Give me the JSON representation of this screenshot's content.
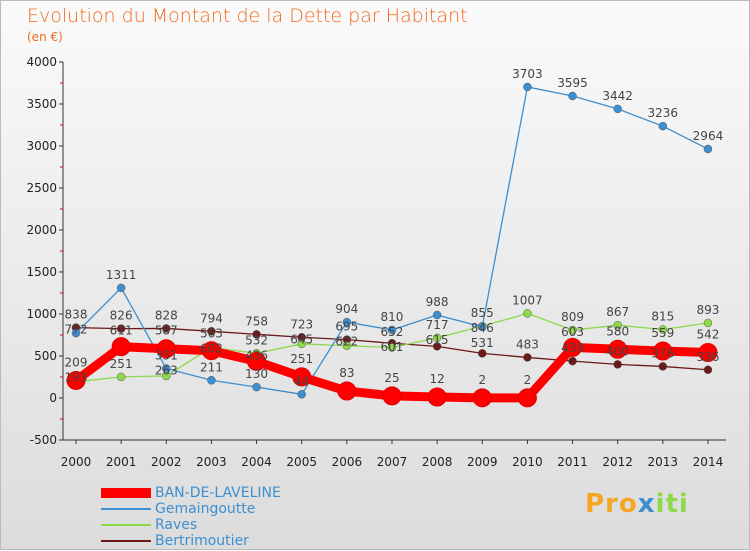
{
  "chart_data": {
    "type": "line",
    "title": "Evolution du Montant de la Dette par Habitant",
    "subtitle": "(en €)",
    "xlabel": "",
    "ylabel": "",
    "x": [
      "2000",
      "2001",
      "2002",
      "2003",
      "2004",
      "2005",
      "2006",
      "2007",
      "2008",
      "2009",
      "2010",
      "2011",
      "2012",
      "2013",
      "2014"
    ],
    "ylim": [
      -500,
      4000
    ],
    "yticks": [
      -500,
      0,
      500,
      1000,
      1500,
      2000,
      2500,
      3000,
      3500,
      4000
    ],
    "legend_position": "bottom-left",
    "series": [
      {
        "name": "BAN-DE-LAVELINE",
        "color": "#ff0000",
        "values": [
          209,
          611,
          587,
          563,
          436,
          251,
          83,
          25,
          12,
          2,
          2,
          603,
          580,
          559,
          542
        ]
      },
      {
        "name": "Gemaingoutte",
        "color": "#3d8fcf",
        "values": [
          772,
          1311,
          351,
          211,
          130,
          44,
          904,
          810,
          988,
          846,
          3703,
          3595,
          3442,
          3236,
          2964
        ]
      },
      {
        "name": "Raves",
        "color": "#8ed94a",
        "values": [
          193,
          251,
          263,
          602,
          532,
          645,
          622,
          601,
          717,
          855,
          1007,
          809,
          867,
          815,
          893
        ]
      },
      {
        "name": "Bertrimoutier",
        "color": "#6b1a1a",
        "values": [
          838,
          826,
          828,
          794,
          758,
          723,
          695,
          652,
          615,
          531,
          483,
          439,
          400,
          376,
          336
        ]
      }
    ]
  },
  "logo": "Proxiti"
}
